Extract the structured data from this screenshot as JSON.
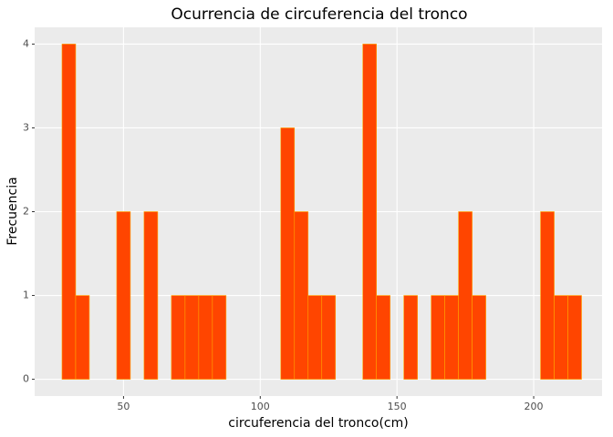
{
  "chart_data": {
    "type": "histogram",
    "title": "Ocurrencia de circuferencia del tronco",
    "x_label": "circuferencia del tronco(cm)",
    "y_label": "Frecuencia",
    "bins": [
      27.5,
      32.5,
      37.5,
      42.5,
      47.5,
      52.5,
      57.5,
      62.5,
      67.5,
      72.5,
      77.5,
      82.5,
      87.5,
      92.5,
      97.5,
      102.5,
      107.5,
      112.5,
      117.5,
      122.5,
      127.5,
      132.5,
      137.5,
      142.5,
      147.5,
      152.5,
      157.5,
      162.5,
      167.5,
      172.5,
      177.5,
      182.5,
      187.5,
      192.5,
      197.5,
      202.5,
      207.5,
      212.5,
      217.5
    ],
    "counts": [
      4,
      1,
      0,
      0,
      2,
      0,
      2,
      0,
      1,
      1,
      1,
      1,
      0,
      0,
      0,
      0,
      3,
      2,
      1,
      1,
      0,
      0,
      4,
      1,
      0,
      1,
      0,
      1,
      1,
      2,
      1,
      0,
      0,
      0,
      0,
      2,
      1,
      1
    ],
    "color": "#ff4500",
    "edge_color": "#ffa500",
    "xlim": [
      17.5,
      225
    ],
    "ylim": [
      -0.2,
      4.2
    ],
    "xticks": [
      50,
      100,
      150,
      200
    ],
    "yticks": [
      0,
      1,
      2,
      3,
      4
    ],
    "grid": true
  }
}
